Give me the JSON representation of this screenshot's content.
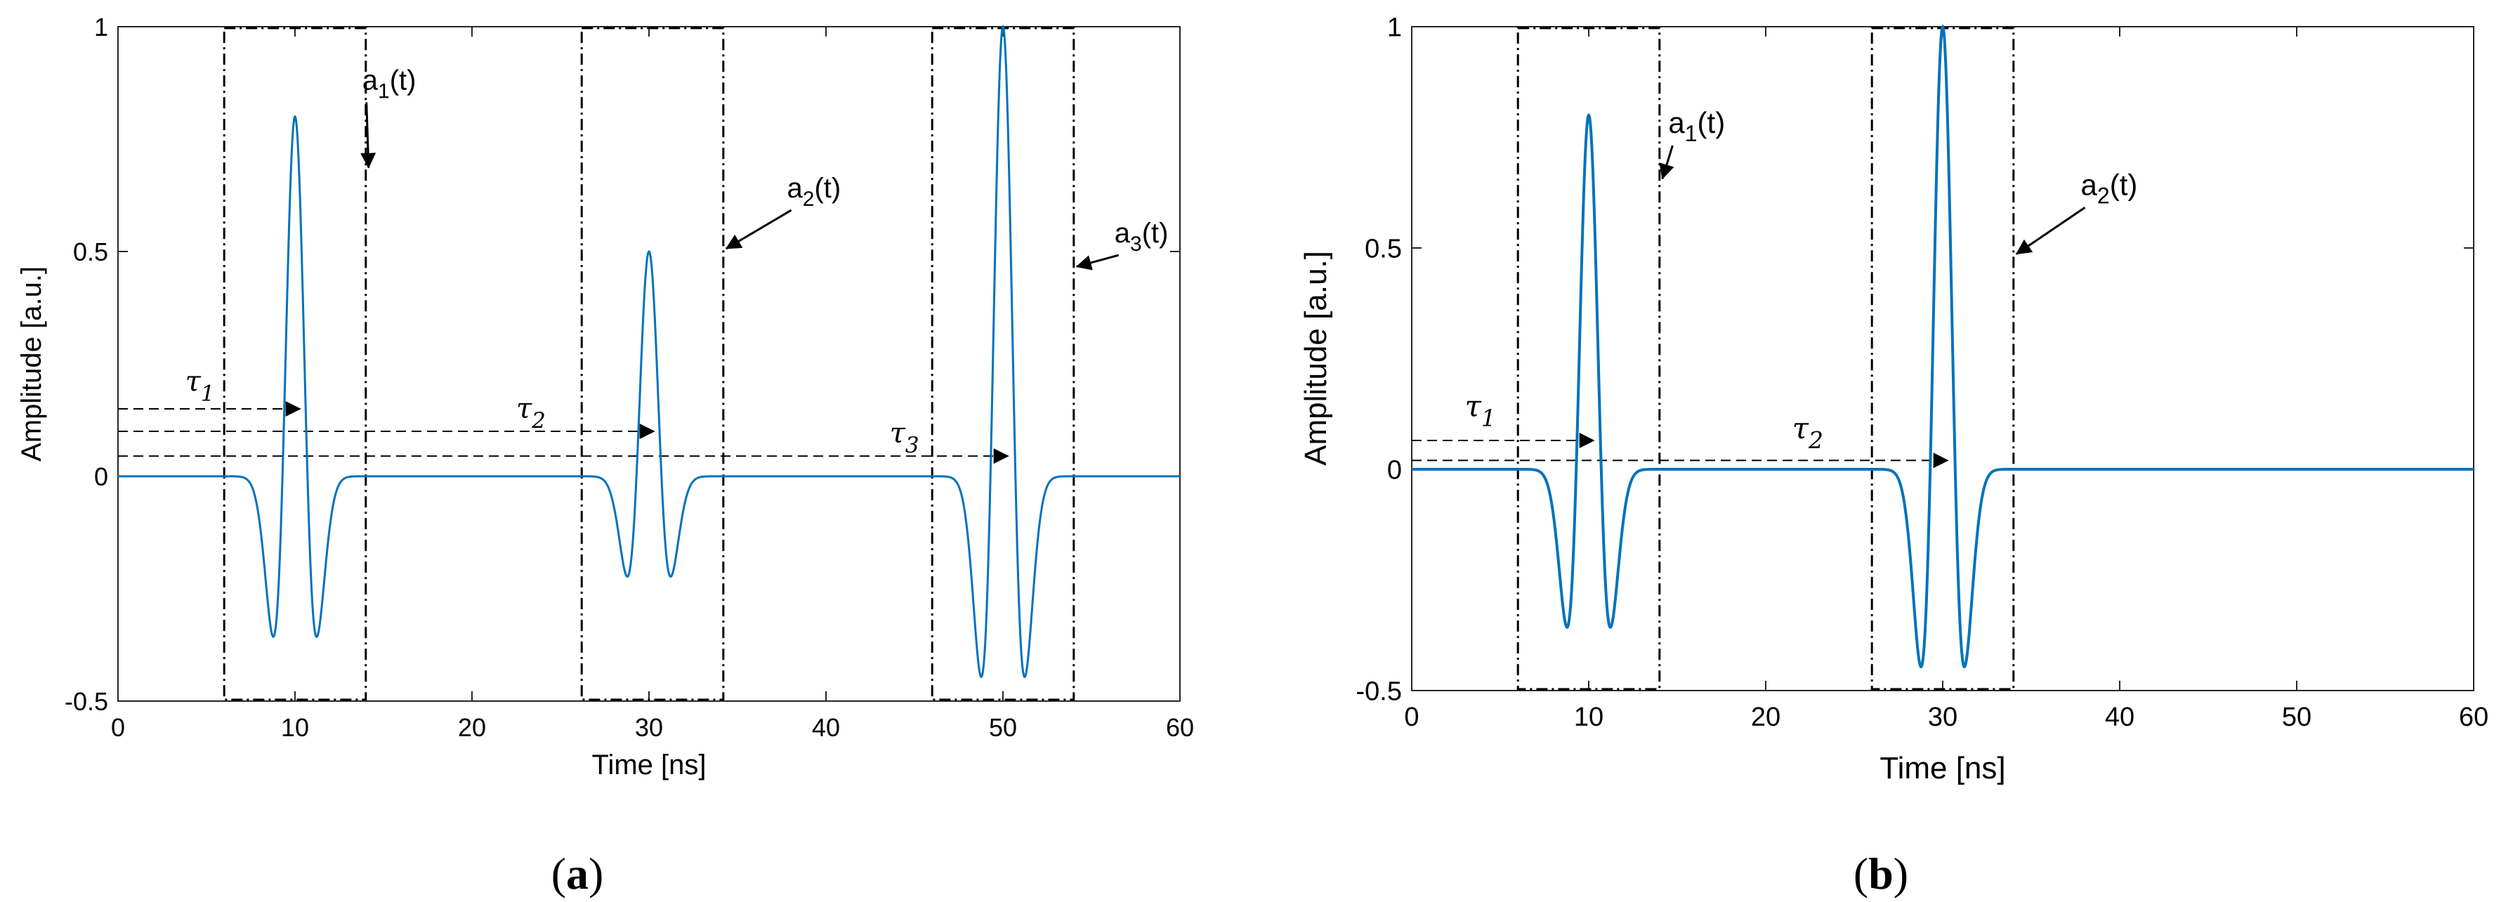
{
  "chart_data": [
    {
      "type": "line",
      "panel_label": "a",
      "xlabel": "Time [ns]",
      "ylabel": "Amplitude [a.u.]",
      "xlim": [
        0,
        60
      ],
      "ylim": [
        -0.5,
        1
      ],
      "xticks": [
        "0",
        "10",
        "20",
        "30",
        "40",
        "50",
        "60"
      ],
      "yticks": [
        "-0.5",
        "0",
        "0.5",
        "1"
      ],
      "line_color": "#0072BD",
      "pulse_sigma_ns": 0.707,
      "pulses": [
        {
          "center": 10,
          "amplitude": 0.8
        },
        {
          "center": 30,
          "amplitude": 0.5
        },
        {
          "center": 50,
          "amplitude": 1.0
        }
      ],
      "windows": [
        {
          "label": "a",
          "sub": "1",
          "suffix": "(t)",
          "x_start": 6,
          "x_end": 14,
          "label_pos": [
            13.8,
            0.86
          ],
          "arrow_to": [
            14,
            0.68
          ]
        },
        {
          "label": "a",
          "sub": "2",
          "suffix": "(t)",
          "x_start": 26.2,
          "x_end": 34.2,
          "label_pos": [
            37.8,
            0.62
          ],
          "arrow_to": [
            34.2,
            0.5
          ]
        },
        {
          "label": "a",
          "sub": "3",
          "suffix": "(t)",
          "x_start": 46,
          "x_end": 54,
          "label_pos": [
            56.3,
            0.52
          ],
          "arrow_to": [
            54,
            0.46
          ]
        }
      ],
      "delays": [
        {
          "label": "τ",
          "sub": "1",
          "y": 0.15,
          "x_end": 10.3,
          "label_pos": [
            3.8,
            0.19
          ]
        },
        {
          "label": "τ",
          "sub": "2",
          "y": 0.1,
          "x_end": 30.3,
          "label_pos": [
            22.5,
            0.13
          ]
        },
        {
          "label": "τ",
          "sub": "3",
          "y": 0.045,
          "x_end": 50.3,
          "label_pos": [
            43.6,
            0.075
          ]
        }
      ]
    },
    {
      "type": "line",
      "panel_label": "b",
      "xlabel": "Time [ns]",
      "ylabel": "Amplitude [a.u.]",
      "xlim": [
        0,
        60
      ],
      "ylim": [
        -0.5,
        1
      ],
      "xticks": [
        "0",
        "10",
        "20",
        "30",
        "40",
        "50",
        "60"
      ],
      "yticks": [
        "-0.5",
        "0",
        "0.5",
        "1"
      ],
      "line_color": "#0072BD",
      "pulse_sigma_ns": 0.707,
      "pulses": [
        {
          "center": 10,
          "amplitude": 0.8
        },
        {
          "center": 30,
          "amplitude": 1.0
        }
      ],
      "windows": [
        {
          "label": "a",
          "sub": "1",
          "suffix": "(t)",
          "x_start": 6,
          "x_end": 14,
          "label_pos": [
            14.5,
            0.76
          ],
          "arrow_to": [
            14,
            0.65
          ]
        },
        {
          "label": "a",
          "sub": "2",
          "suffix": "(t)",
          "x_start": 26,
          "x_end": 34,
          "label_pos": [
            37.8,
            0.62
          ],
          "arrow_to": [
            34,
            0.48
          ]
        }
      ],
      "delays": [
        {
          "label": "τ",
          "sub": "1",
          "y": 0.065,
          "x_end": 10.3,
          "label_pos": [
            3.0,
            0.12
          ]
        },
        {
          "label": "τ",
          "sub": "2",
          "y": 0.02,
          "x_end": 30.3,
          "label_pos": [
            21.5,
            0.07
          ]
        }
      ]
    }
  ]
}
